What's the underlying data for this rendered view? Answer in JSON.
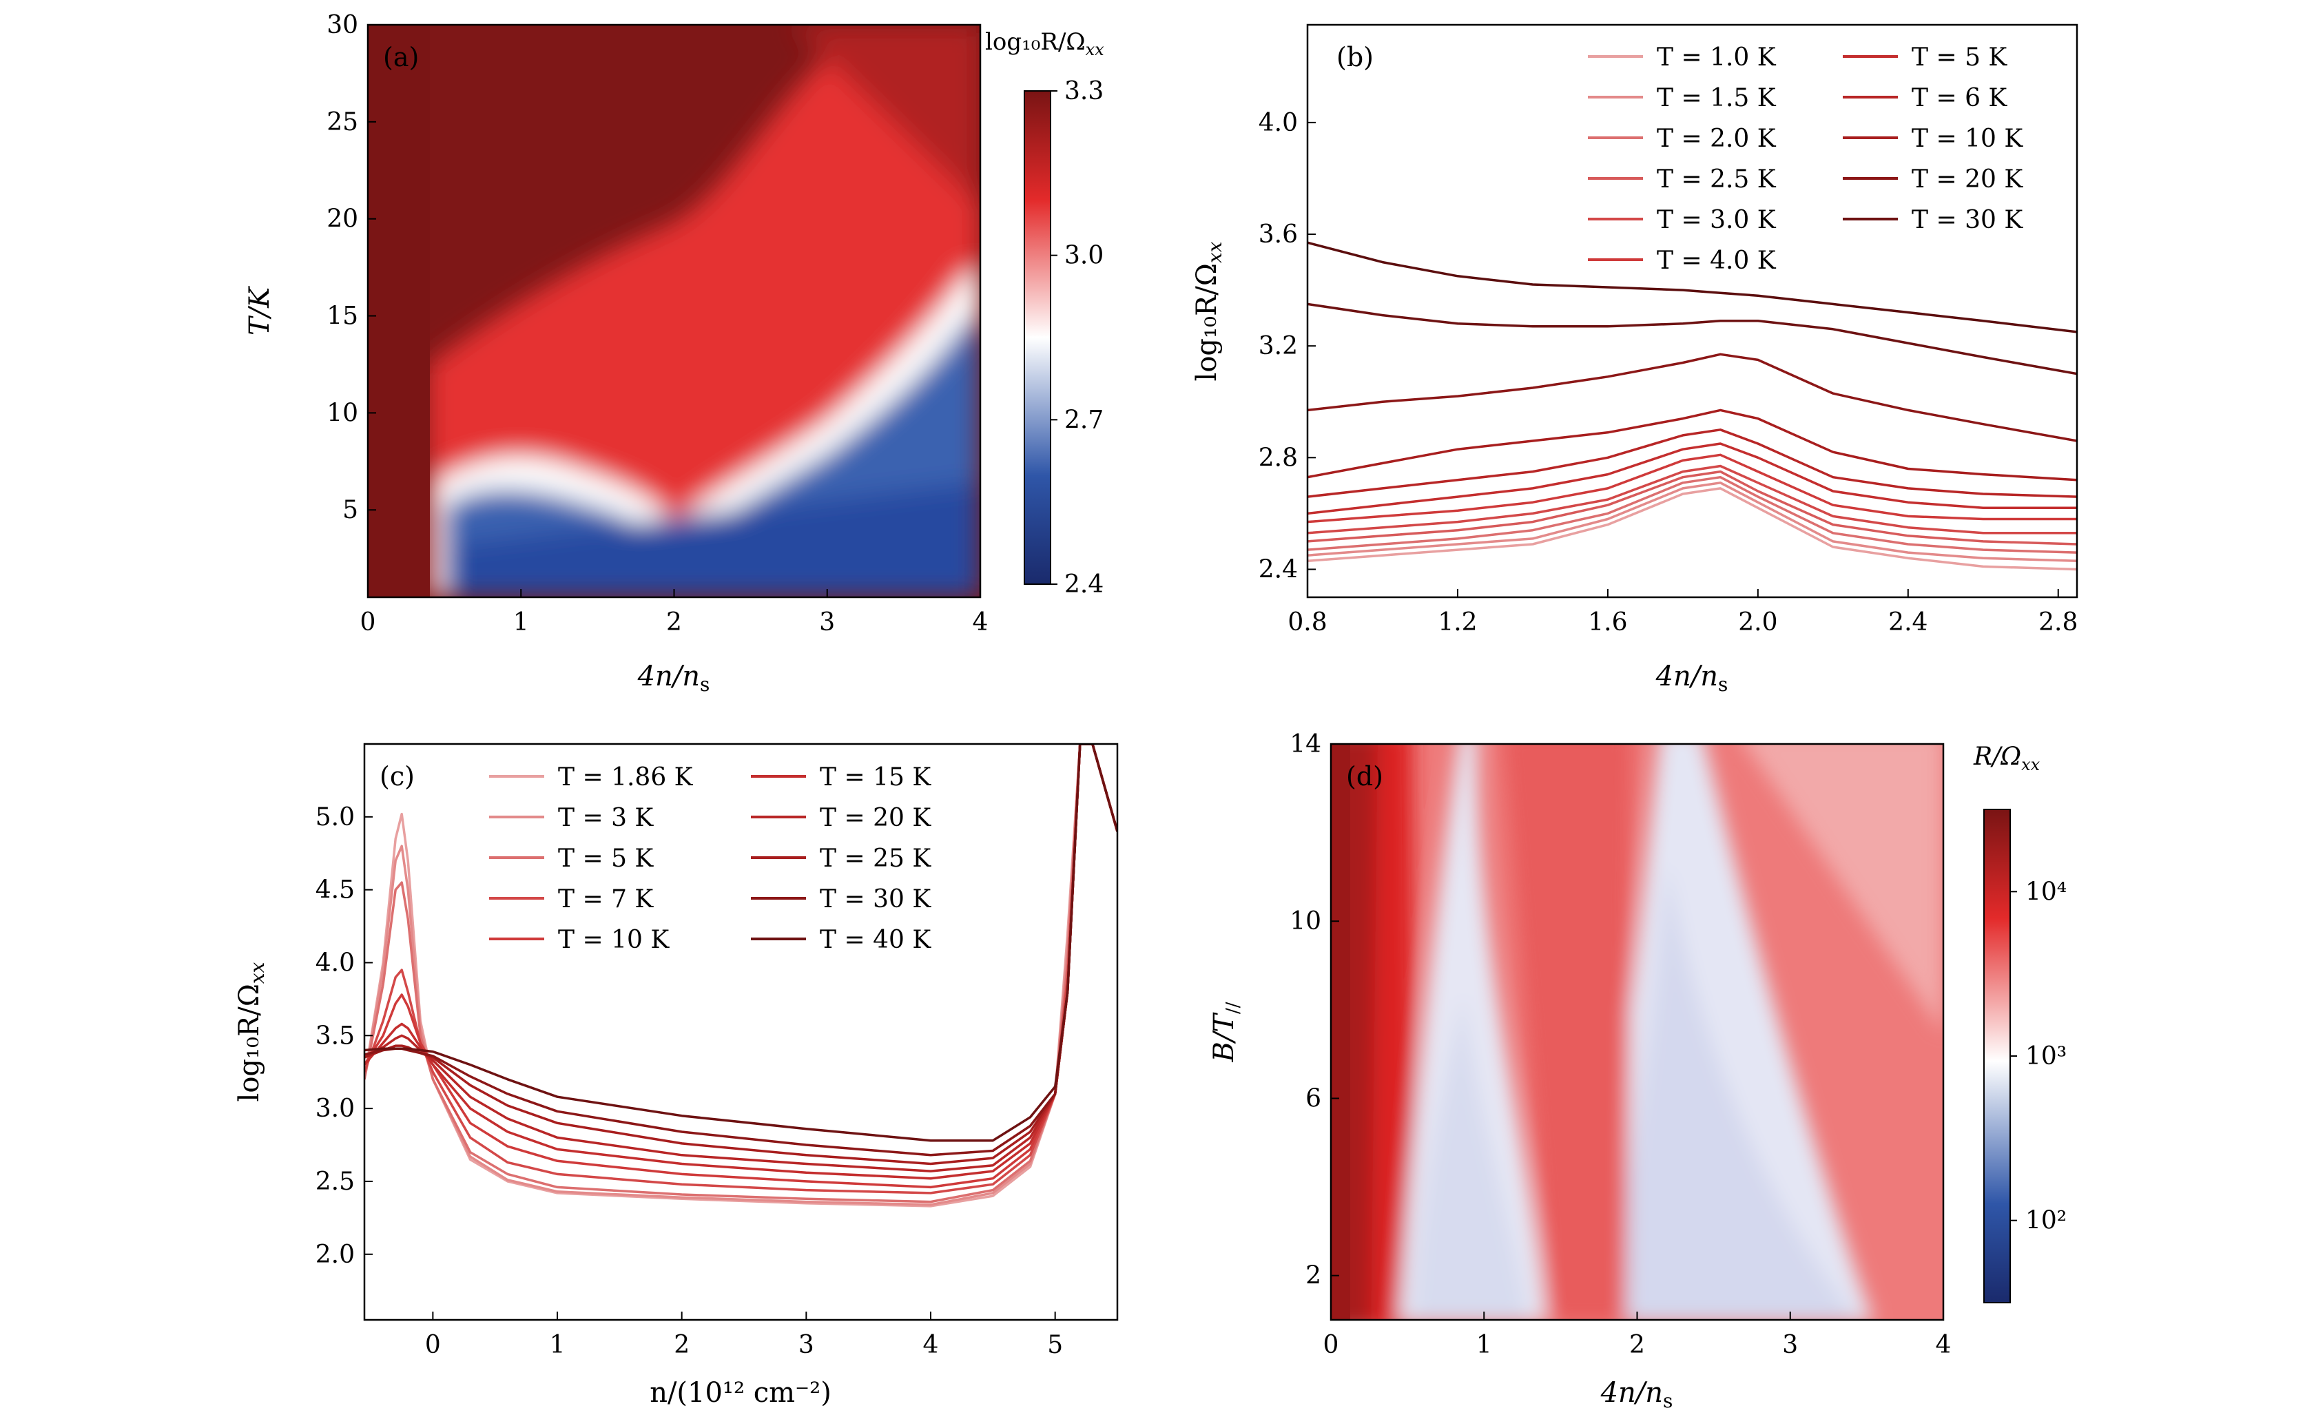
{
  "chart_data": [
    {
      "panel_label": "(a)",
      "type": "heatmap",
      "xlabel": "4n/n",
      "xlabel_sub": "s",
      "ylabel": "T/K",
      "xlim": [
        0,
        4
      ],
      "ylim": [
        0.5,
        30
      ],
      "x_ticks": [
        "0",
        "1",
        "2",
        "3",
        "4"
      ],
      "y_ticks": [
        "5",
        "10",
        "15",
        "20",
        "25",
        "30"
      ],
      "colorbar": {
        "title": "log₁₀R/Ω",
        "title_sub": "xx",
        "ticks": [
          "2.4",
          "2.7",
          "3.0",
          "3.3"
        ],
        "range": [
          2.4,
          3.3
        ],
        "colors": [
          "#1a2a6c",
          "#2f56a8",
          "#ffffff",
          "#e32a2a",
          "#7a1414"
        ]
      },
      "transition_boundary": {
        "x": [
          0.45,
          0.6,
          0.8,
          1.0,
          1.3,
          1.6,
          1.8,
          1.9,
          2.0,
          2.2,
          2.5,
          2.8,
          3.1,
          3.4,
          3.7,
          3.9
        ],
        "T": [
          6.5,
          7.8,
          8.0,
          7.0,
          6.3,
          6.0,
          4.5,
          3.8,
          4.5,
          6.0,
          8.0,
          9.5,
          11.0,
          13.0,
          16.0,
          17.5
        ]
      }
    },
    {
      "panel_label": "(b)",
      "type": "line",
      "xlabel": "4n/n",
      "xlabel_sub": "s",
      "ylabel": "log₁₀R/Ω",
      "ylabel_sub": "xx",
      "xlim": [
        0.8,
        2.85
      ],
      "ylim": [
        2.3,
        4.35
      ],
      "x_ticks": [
        "0.8",
        "1.2",
        "1.6",
        "2.0",
        "2.4",
        "2.8"
      ],
      "y_ticks": [
        "2.4",
        "2.8",
        "3.2",
        "3.6",
        "4.0"
      ],
      "x": [
        0.8,
        1.0,
        1.2,
        1.4,
        1.6,
        1.8,
        1.9,
        2.0,
        2.2,
        2.4,
        2.6,
        2.85
      ],
      "series": [
        {
          "name": "T = 1.0 K",
          "color": "#e8a0a0",
          "values": [
            2.43,
            2.45,
            2.47,
            2.49,
            2.56,
            2.67,
            2.69,
            2.62,
            2.48,
            2.44,
            2.41,
            2.4
          ]
        },
        {
          "name": "T = 1.5 K",
          "color": "#e38a8a",
          "values": [
            2.45,
            2.47,
            2.49,
            2.51,
            2.58,
            2.69,
            2.71,
            2.64,
            2.5,
            2.46,
            2.44,
            2.43
          ]
        },
        {
          "name": "T = 2.0 K",
          "color": "#dc6f6f",
          "values": [
            2.47,
            2.49,
            2.51,
            2.54,
            2.6,
            2.71,
            2.73,
            2.66,
            2.53,
            2.49,
            2.47,
            2.46
          ]
        },
        {
          "name": "T = 2.5 K",
          "color": "#d75a5a",
          "values": [
            2.5,
            2.52,
            2.54,
            2.57,
            2.63,
            2.73,
            2.75,
            2.68,
            2.56,
            2.52,
            2.5,
            2.49
          ]
        },
        {
          "name": "T = 3.0 K",
          "color": "#d34848",
          "values": [
            2.53,
            2.55,
            2.57,
            2.6,
            2.65,
            2.75,
            2.77,
            2.71,
            2.59,
            2.55,
            2.53,
            2.53
          ]
        },
        {
          "name": "T = 4.0 K",
          "color": "#cf3a3a",
          "values": [
            2.57,
            2.59,
            2.61,
            2.64,
            2.69,
            2.79,
            2.81,
            2.75,
            2.63,
            2.59,
            2.58,
            2.58
          ]
        },
        {
          "name": "T = 5 K",
          "color": "#c42e2e",
          "values": [
            2.6,
            2.63,
            2.66,
            2.69,
            2.74,
            2.83,
            2.85,
            2.8,
            2.68,
            2.64,
            2.62,
            2.62
          ]
        },
        {
          "name": "T = 6 K",
          "color": "#b82626",
          "values": [
            2.66,
            2.69,
            2.72,
            2.75,
            2.8,
            2.88,
            2.9,
            2.85,
            2.73,
            2.69,
            2.67,
            2.66
          ]
        },
        {
          "name": "T = 10 K",
          "color": "#a81e1e",
          "values": [
            2.73,
            2.78,
            2.83,
            2.86,
            2.89,
            2.94,
            2.97,
            2.94,
            2.82,
            2.76,
            2.74,
            2.72
          ]
        },
        {
          "name": "T = 20 K",
          "color": "#8c1717",
          "values": [
            2.97,
            3.0,
            3.02,
            3.05,
            3.09,
            3.14,
            3.17,
            3.15,
            3.03,
            2.97,
            2.92,
            2.86
          ]
        },
        {
          "name": "T = 30 K",
          "color": "#6e1212",
          "values": [
            3.35,
            3.31,
            3.28,
            3.27,
            3.27,
            3.28,
            3.29,
            3.29,
            3.26,
            3.21,
            3.16,
            3.1
          ]
        },
        {
          "name": "",
          "color": "#5c0e0e",
          "values": [
            3.57,
            3.5,
            3.45,
            3.42,
            3.41,
            3.4,
            3.39,
            3.38,
            3.35,
            3.32,
            3.29,
            3.25
          ]
        }
      ]
    },
    {
      "panel_label": "(c)",
      "type": "line",
      "xlabel": "n/(10¹² cm⁻²)",
      "ylabel": "log₁₀R/Ω",
      "ylabel_sub": "xx",
      "xlim": [
        -0.55,
        5.5
      ],
      "ylim": [
        1.55,
        5.5
      ],
      "x_ticks": [
        "0",
        "1",
        "2",
        "3",
        "4",
        "5"
      ],
      "y_ticks": [
        "2.0",
        "2.5",
        "3.0",
        "3.5",
        "4.0",
        "4.5",
        "5.0"
      ],
      "x": [
        -0.55,
        -0.4,
        -0.3,
        -0.25,
        -0.2,
        -0.1,
        0.0,
        0.3,
        0.6,
        1.0,
        2.0,
        3.0,
        4.0,
        4.5,
        4.8,
        5.0,
        5.1,
        5.2,
        5.25,
        5.3,
        5.4,
        5.5
      ],
      "series": [
        {
          "name": "T = 1.86 K",
          "color": "#e8a0a0",
          "values": [
            3.2,
            4.0,
            4.85,
            5.02,
            4.7,
            3.6,
            3.2,
            2.65,
            2.5,
            2.42,
            2.38,
            2.35,
            2.33,
            2.4,
            2.6,
            3.1,
            4.2,
            5.5,
            5.5,
            5.5,
            5.2,
            4.9
          ]
        },
        {
          "name": "T = 3 K",
          "color": "#e38a8a",
          "values": [
            3.2,
            3.95,
            4.7,
            4.8,
            4.5,
            3.55,
            3.2,
            2.67,
            2.51,
            2.43,
            2.39,
            2.36,
            2.34,
            2.42,
            2.62,
            3.1,
            4.1,
            5.5,
            5.5,
            5.5,
            5.2,
            4.9
          ]
        },
        {
          "name": "T = 5 K",
          "color": "#dc6f6f",
          "values": [
            3.2,
            3.85,
            4.5,
            4.55,
            4.3,
            3.5,
            3.2,
            2.7,
            2.55,
            2.46,
            2.41,
            2.38,
            2.36,
            2.44,
            2.64,
            3.1,
            4.0,
            5.5,
            5.5,
            5.5,
            5.2,
            4.9
          ]
        },
        {
          "name": "T = 7 K",
          "color": "#d34848",
          "values": [
            3.25,
            3.6,
            3.9,
            3.95,
            3.8,
            3.45,
            3.25,
            2.8,
            2.63,
            2.55,
            2.48,
            2.44,
            2.42,
            2.48,
            2.68,
            3.1,
            3.9,
            5.5,
            5.5,
            5.5,
            5.2,
            4.9
          ]
        },
        {
          "name": "T = 10 K",
          "color": "#cf3a3a",
          "values": [
            3.3,
            3.5,
            3.72,
            3.78,
            3.7,
            3.45,
            3.3,
            2.9,
            2.74,
            2.64,
            2.55,
            2.5,
            2.46,
            2.52,
            2.72,
            3.1,
            3.8,
            5.5,
            5.5,
            5.5,
            5.2,
            4.9
          ]
        },
        {
          "name": "T = 15 K",
          "color": "#c42e2e",
          "values": [
            3.3,
            3.45,
            3.55,
            3.58,
            3.55,
            3.42,
            3.3,
            3.0,
            2.84,
            2.72,
            2.62,
            2.56,
            2.52,
            2.57,
            2.76,
            3.1,
            3.8,
            5.5,
            5.5,
            5.5,
            5.2,
            4.9
          ]
        },
        {
          "name": "T = 20 K",
          "color": "#b82626",
          "values": [
            3.35,
            3.42,
            3.48,
            3.5,
            3.48,
            3.4,
            3.33,
            3.08,
            2.93,
            2.8,
            2.68,
            2.62,
            2.57,
            2.61,
            2.8,
            3.1,
            3.8,
            5.5,
            5.5,
            5.5,
            5.2,
            4.9
          ]
        },
        {
          "name": "T = 25 K",
          "color": "#a81e1e",
          "values": [
            3.35,
            3.4,
            3.43,
            3.43,
            3.42,
            3.38,
            3.35,
            3.16,
            3.02,
            2.9,
            2.76,
            2.68,
            2.62,
            2.66,
            2.84,
            3.1,
            3.8,
            5.5,
            5.5,
            5.5,
            5.2,
            4.9
          ]
        },
        {
          "name": "T = 30 K",
          "color": "#8c1717",
          "values": [
            3.37,
            3.4,
            3.41,
            3.41,
            3.4,
            3.38,
            3.36,
            3.22,
            3.1,
            2.98,
            2.84,
            2.75,
            2.68,
            2.71,
            2.88,
            3.1,
            3.8,
            5.5,
            5.5,
            5.5,
            5.2,
            4.9
          ]
        },
        {
          "name": "T = 40 K",
          "color": "#6e1212",
          "values": [
            3.4,
            3.41,
            3.41,
            3.41,
            3.41,
            3.4,
            3.39,
            3.3,
            3.2,
            3.08,
            2.95,
            2.86,
            2.78,
            2.78,
            2.94,
            3.15,
            3.8,
            5.5,
            5.5,
            5.5,
            5.2,
            4.9
          ]
        }
      ]
    },
    {
      "panel_label": "(d)",
      "type": "heatmap",
      "xlabel": "4n/n",
      "xlabel_sub": "s",
      "ylabel": "B/T",
      "ylabel_sub": "//",
      "xlim": [
        0,
        4
      ],
      "ylim": [
        1,
        14
      ],
      "x_ticks": [
        "0",
        "1",
        "2",
        "3",
        "4"
      ],
      "y_ticks": [
        "2",
        "6",
        "10",
        "14"
      ],
      "colorbar": {
        "title": "R/Ω",
        "title_sub": "xx",
        "ticks": [
          "10²",
          "10³",
          "10⁴"
        ],
        "scale": "log",
        "colors": [
          "#1a2a6c",
          "#2f56a8",
          "#ffffff",
          "#e32a2a",
          "#7a1414"
        ]
      },
      "low_resistance_regions": [
        {
          "B": [
            1,
            8,
            14
          ],
          "x_left": [
            0.45,
            0.6,
            0.85
          ],
          "x_right": [
            1.35,
            1.0,
            0.9
          ]
        },
        {
          "B": [
            1,
            8,
            14
          ],
          "x_left": [
            1.95,
            2.1,
            2.25
          ],
          "x_right": [
            3.6,
            3.0,
            2.6
          ]
        }
      ]
    }
  ]
}
